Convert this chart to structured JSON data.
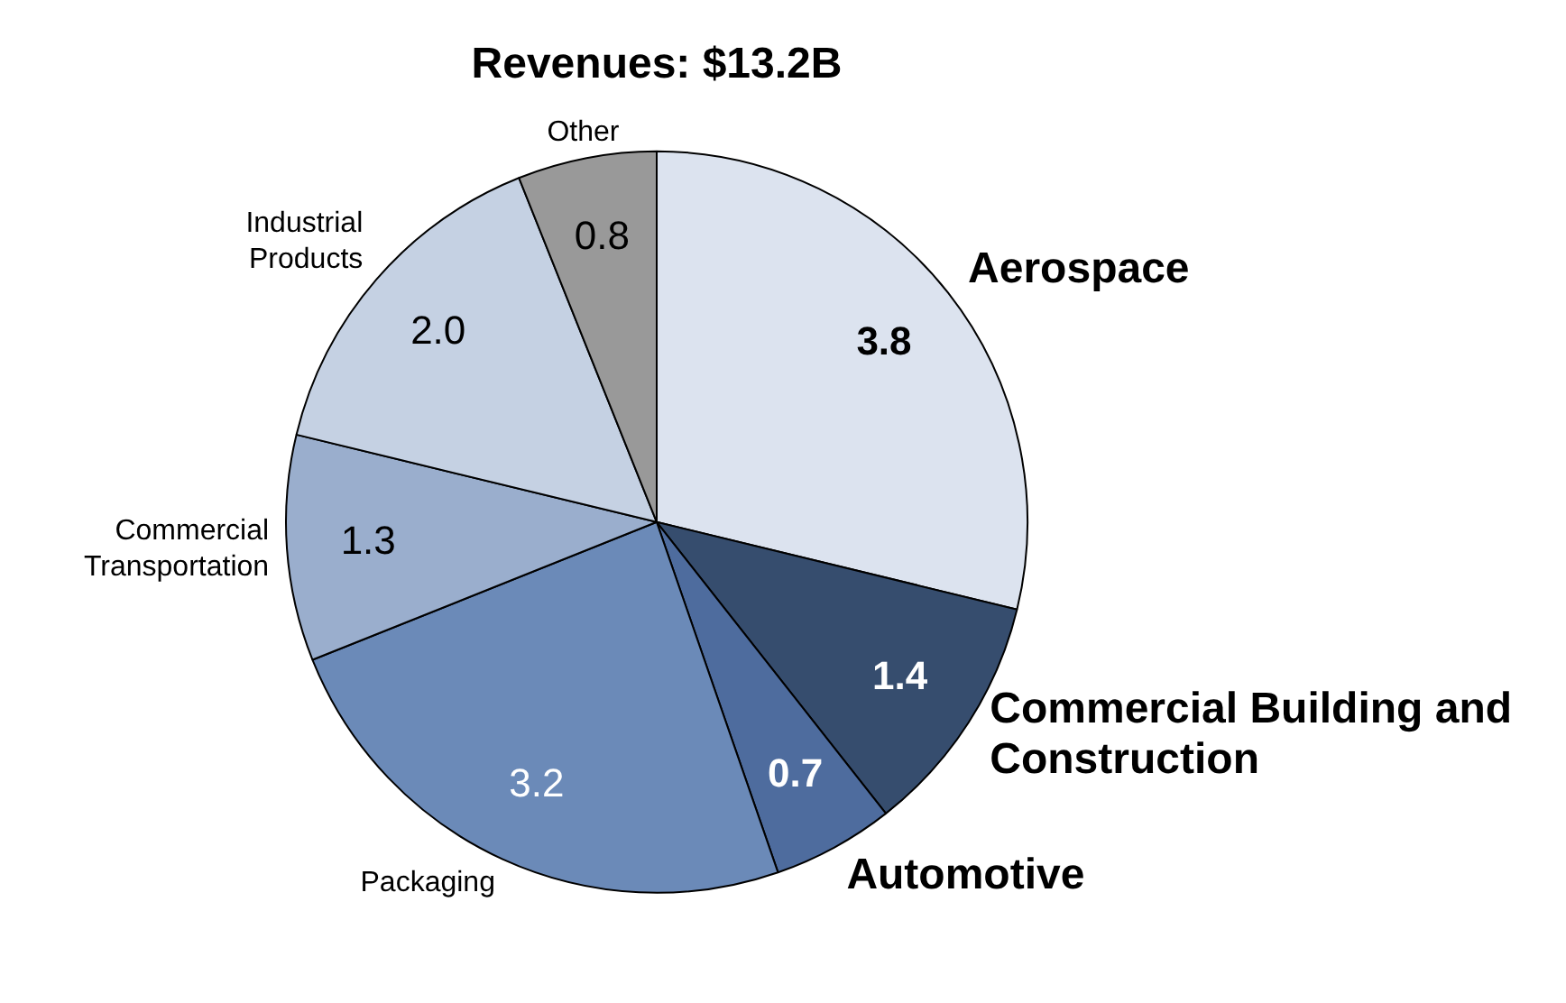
{
  "chart_data": {
    "type": "pie",
    "title": "Revenues: $13.2B",
    "categories": [
      "Aerospace",
      "Commercial Building and Construction",
      "Automotive",
      "Packaging",
      "Commercial Transportation",
      "Industrial Products",
      "Other"
    ],
    "values": [
      3.8,
      1.4,
      0.7,
      3.2,
      1.3,
      2.0,
      0.8
    ],
    "colors": [
      "#dce3ef",
      "#364d6e",
      "#4e6c9e",
      "#6b8ab8",
      "#9aaecd",
      "#c5d1e3",
      "#999999"
    ],
    "value_labels": [
      "3.8",
      "1.4",
      "0.7",
      "3.2",
      "1.3",
      "2.0",
      "0.8"
    ],
    "legend": false
  }
}
